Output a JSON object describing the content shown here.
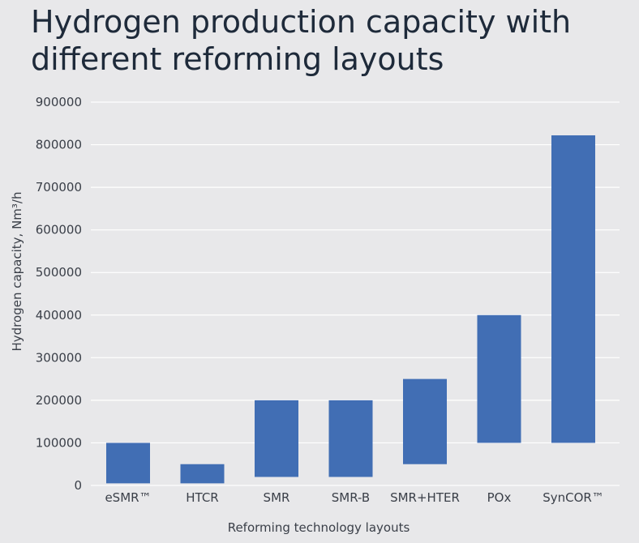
{
  "chart_data": {
    "type": "bar",
    "title": "Hydrogen production capacity with different reforming layouts",
    "xlabel": "Reforming technology layouts",
    "ylabel": "Hydrogen capacity, Nm³/h",
    "ylim": [
      0,
      900000
    ],
    "yticks": [
      "900000",
      "800000",
      "700000",
      "600000",
      "500000",
      "400000",
      "300000",
      "200000",
      "100000",
      "0"
    ],
    "grid": true,
    "bar_color": "#416eb4",
    "categories": [
      "eSMR™",
      "HTCR",
      "SMR",
      "SMR-B",
      "SMR+HTER",
      "POx",
      "SynCOR™"
    ],
    "ranges": [
      {
        "low": 5000,
        "high": 100000
      },
      {
        "low": 5000,
        "high": 50000
      },
      {
        "low": 20000,
        "high": 200000
      },
      {
        "low": 20000,
        "high": 200000
      },
      {
        "low": 50000,
        "high": 250000
      },
      {
        "low": 100000,
        "high": 400000
      },
      {
        "low": 100000,
        "high": 822000
      }
    ]
  }
}
